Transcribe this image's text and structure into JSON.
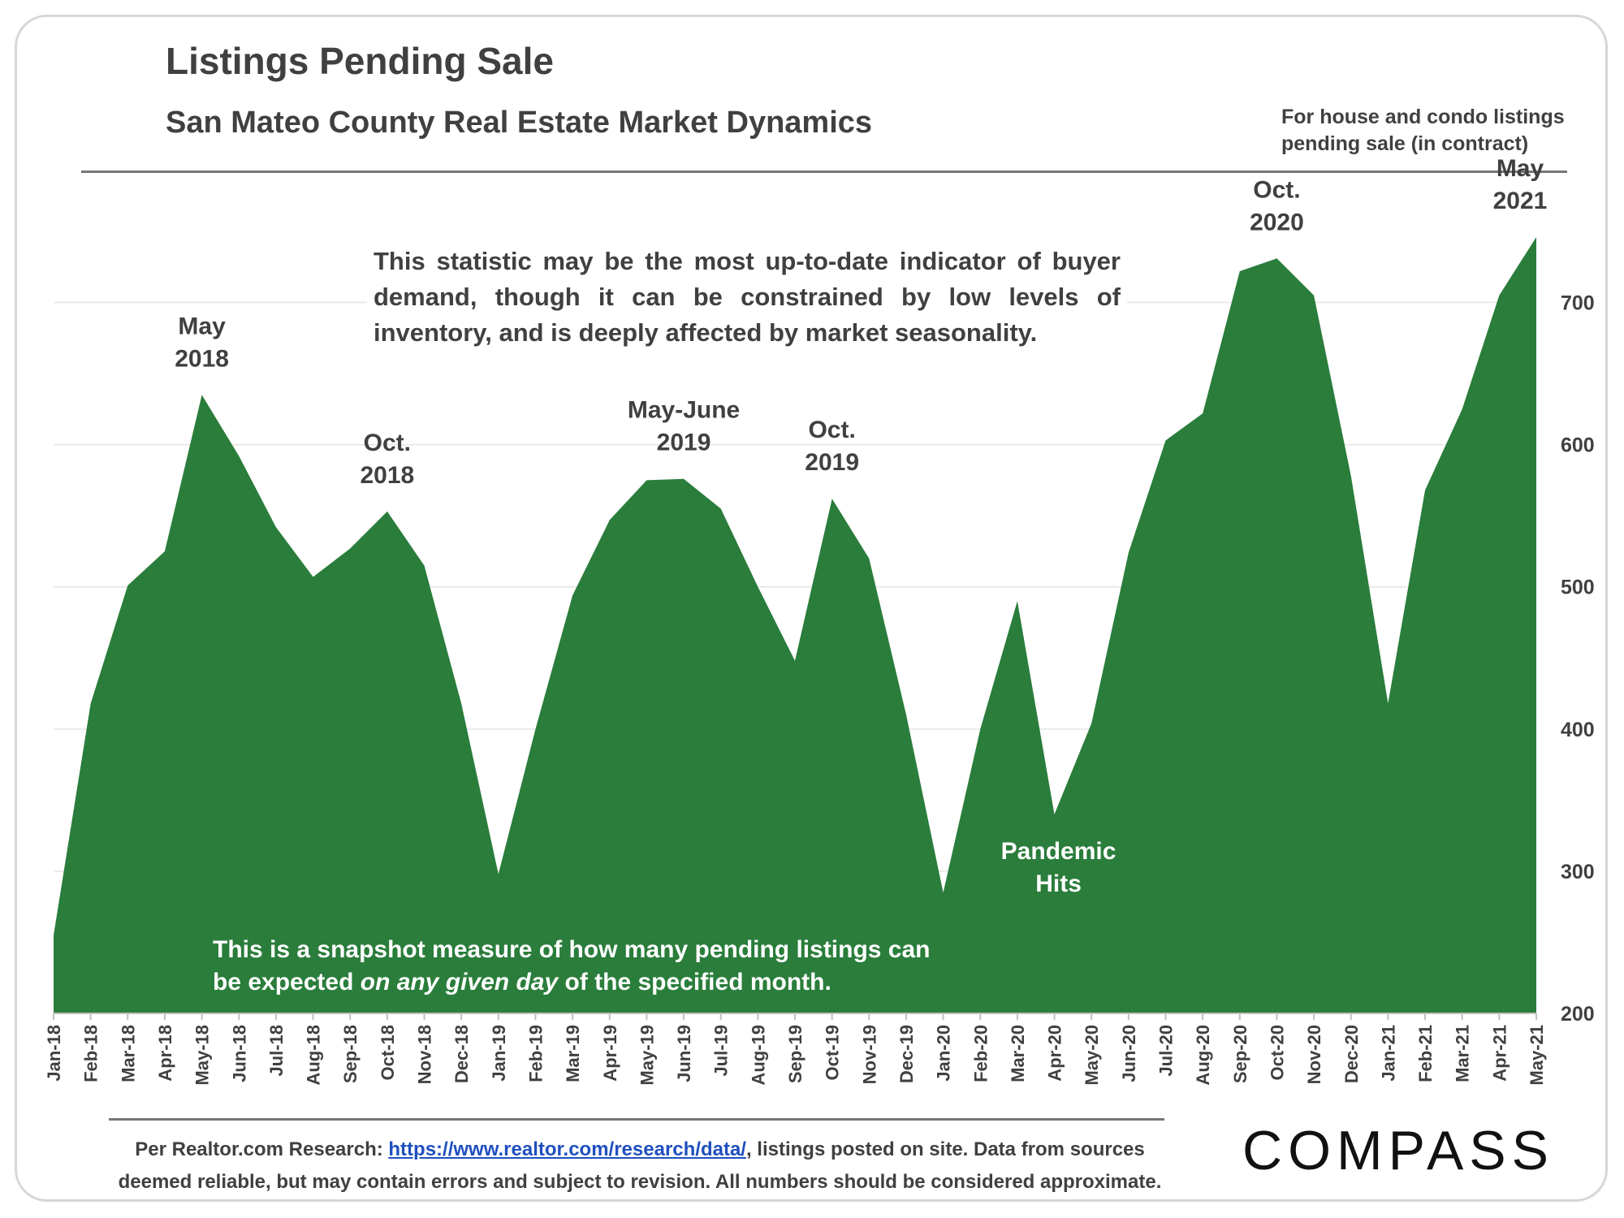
{
  "header": {
    "title": "Listings Pending Sale",
    "subtitle": "San Mateo County Real Estate Market Dynamics",
    "side_note": "For house and condo listings pending sale (in contract)"
  },
  "notes": {
    "statistic": "This statistic may be the most up-to-date indicator of buyer demand, though it can be constrained by low levels of inventory, and is deeply affected by market seasonality.",
    "snapshot_a": "This is a snapshot measure of how many pending listings can be expected ",
    "snapshot_em": "on any given day",
    "snapshot_b": " of the specified month."
  },
  "footer": {
    "source_prefix": "Per Realtor.com Research: ",
    "source_link": "https://www.realtor.com/research/data/",
    "source_suffix": ", listings posted on site. Data from sources deemed reliable, but may contain errors and subject to revision. All numbers should be considered approximate.",
    "logo": "COMPASS"
  },
  "chart_data": {
    "type": "area",
    "color": "#2a7d3b",
    "ylim": [
      200,
      750
    ],
    "yticks": [
      200,
      300,
      400,
      500,
      600,
      700
    ],
    "y_axis_side": "right",
    "grid": true,
    "x": [
      "Jan-18",
      "Feb-18",
      "Mar-18",
      "Apr-18",
      "May-18",
      "Jun-18",
      "Jul-18",
      "Aug-18",
      "Sep-18",
      "Oct-18",
      "Nov-18",
      "Dec-18",
      "Jan-19",
      "Feb-19",
      "Mar-19",
      "Apr-19",
      "May-19",
      "Jun-19",
      "Jul-19",
      "Aug-19",
      "Sep-19",
      "Oct-19",
      "Nov-19",
      "Dec-19",
      "Jan-20",
      "Feb-20",
      "Mar-20",
      "Apr-20",
      "May-20",
      "Jun-20",
      "Jul-20",
      "Aug-20",
      "Sep-20",
      "Oct-20",
      "Nov-20",
      "Dec-20",
      "Jan-21",
      "Feb-21",
      "Mar-21",
      "Apr-21",
      "May-21"
    ],
    "values": [
      255,
      418,
      501,
      525,
      635,
      592,
      542,
      507,
      527,
      553,
      515,
      418,
      298,
      400,
      494,
      547,
      575,
      576,
      555,
      500,
      448,
      562,
      520,
      410,
      285,
      400,
      490,
      340,
      404,
      524,
      603,
      622,
      722,
      731,
      705,
      578,
      418,
      568,
      625,
      705,
      746
    ],
    "annotations": [
      {
        "category": "May-18",
        "lines": [
          "May",
          "2018"
        ]
      },
      {
        "category": "Oct-18",
        "lines": [
          "Oct.",
          "2018"
        ]
      },
      {
        "category": "Jun-19",
        "lines": [
          "May-June",
          "2019"
        ]
      },
      {
        "category": "Oct-19",
        "lines": [
          "Oct.",
          "2019"
        ]
      },
      {
        "category": "Oct-20",
        "lines": [
          "Oct.",
          "2020"
        ]
      },
      {
        "category": "May-21",
        "lines": [
          "May",
          "2021"
        ]
      },
      {
        "category": "Apr-20",
        "lines": [
          "Pandemic",
          "Hits"
        ],
        "inside": true
      }
    ]
  }
}
